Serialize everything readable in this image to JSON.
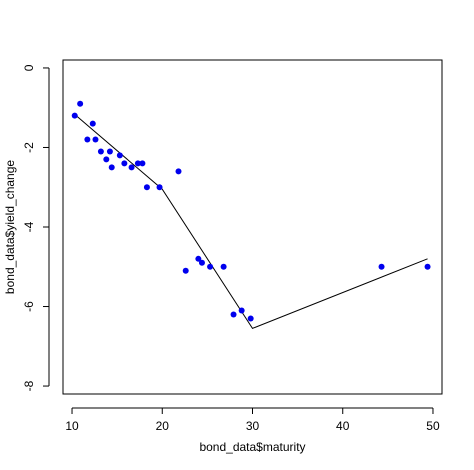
{
  "chart_data": {
    "type": "scatter",
    "xlabel": "bond_data$maturity",
    "ylabel": "bond_data$yield_change",
    "xlim": [
      9,
      51
    ],
    "ylim": [
      -8.2,
      0.2
    ],
    "x_ticks": [
      10,
      20,
      30,
      40,
      50
    ],
    "x_tick_labels": [
      "10",
      "20",
      "30",
      "40",
      "50"
    ],
    "y_ticks": [
      0,
      -2,
      -4,
      -6,
      -8
    ],
    "y_tick_labels": [
      "0",
      "-2",
      "-4",
      "-6",
      "-8"
    ],
    "grid": false,
    "legend": "none",
    "colors": {
      "points": "#0000ee",
      "line": "#000000",
      "axes": "#000000"
    },
    "series": [
      {
        "type": "scatter",
        "x": [
          10.3,
          10.9,
          11.7,
          12.3,
          12.6,
          13.2,
          13.8,
          14.2,
          14.4,
          15.3,
          15.8,
          16.6,
          17.3,
          17.8,
          18.3,
          19.7,
          21.8,
          22.6,
          24.0,
          24.4,
          25.3,
          26.8,
          27.9,
          28.8,
          29.8,
          44.3,
          49.4
        ],
        "y": [
          -1.2,
          -0.9,
          -1.8,
          -1.4,
          -1.8,
          -2.1,
          -2.3,
          -2.1,
          -2.5,
          -2.2,
          -2.4,
          -2.5,
          -2.4,
          -2.4,
          -3.0,
          -3.0,
          -2.6,
          -5.1,
          -4.8,
          -4.9,
          -5.0,
          -5.0,
          -6.2,
          -6.1,
          -6.3,
          -5.0,
          -5.0
        ]
      },
      {
        "type": "line",
        "x": [
          10.2,
          20.0,
          30.0,
          49.4
        ],
        "y": [
          -1.15,
          -3.05,
          -6.55,
          -4.8
        ]
      }
    ]
  }
}
